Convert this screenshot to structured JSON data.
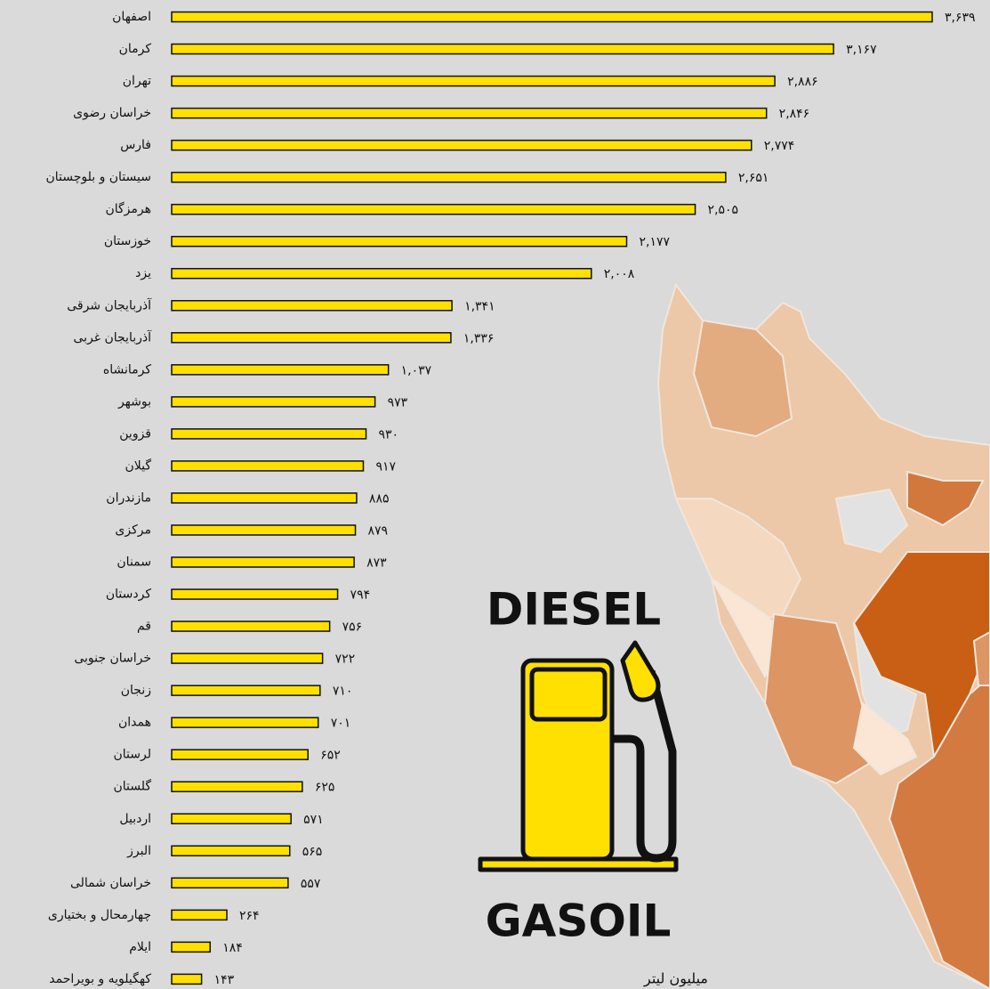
{
  "chart_data": {
    "type": "bar",
    "orientation": "horizontal",
    "title": "DIESEL",
    "subtitle": "GASOIL",
    "x_label": "میلیون لیتر",
    "color": "#ffe000",
    "categories": [
      "اصفهان",
      "کرمان",
      "تهران",
      "خراسان رضوی",
      "فارس",
      "سیستان و بلوچستان",
      "هرمزگان",
      "خوزستان",
      "یزد",
      "آذربایجان شرقی",
      "آذربایجان غربی",
      "کرمانشاه",
      "بوشهر",
      "قزوین",
      "گیلان",
      "مازندران",
      "مرکزی",
      "سمنان",
      "کردستان",
      "قم",
      "خراسان جنوبی",
      "زنجان",
      "همدان",
      "لرستان",
      "گلستان",
      "اردبیل",
      "البرز",
      "خراسان شمالی",
      "چهارمحال و بختیاری",
      "ایلام",
      "کهگیلویه و بویراحمد"
    ],
    "values": [
      3639,
      3167,
      2886,
      2846,
      2774,
      2651,
      2505,
      2177,
      2008,
      1341,
      1336,
      1037,
      973,
      930,
      917,
      885,
      879,
      873,
      794,
      756,
      722,
      710,
      701,
      652,
      625,
      571,
      565,
      557,
      264,
      184,
      143
    ],
    "value_labels": [
      "۳,۶۳۹",
      "۳,۱۶۷",
      "۲,۸۸۶",
      "۲,۸۴۶",
      "۲,۷۷۴",
      "۲,۶۵۱",
      "۲,۵۰۵",
      "۲,۱۷۷",
      "۲,۰۰۸",
      "۱,۳۴۱",
      "۱,۳۳۶",
      "۱,۰۳۷",
      "۹۷۳",
      "۹۳۰",
      "۹۱۷",
      "۸۸۵",
      "۸۷۹",
      "۸۷۳",
      "۷۹۴",
      "۷۵۶",
      "۷۲۲",
      "۷۱۰",
      "۷۰۱",
      "۶۵۲",
      "۶۲۵",
      "۵۷۱",
      "۵۶۵",
      "۵۵۷",
      "۲۶۴",
      "۱۸۴",
      "۱۴۳"
    ]
  }
}
